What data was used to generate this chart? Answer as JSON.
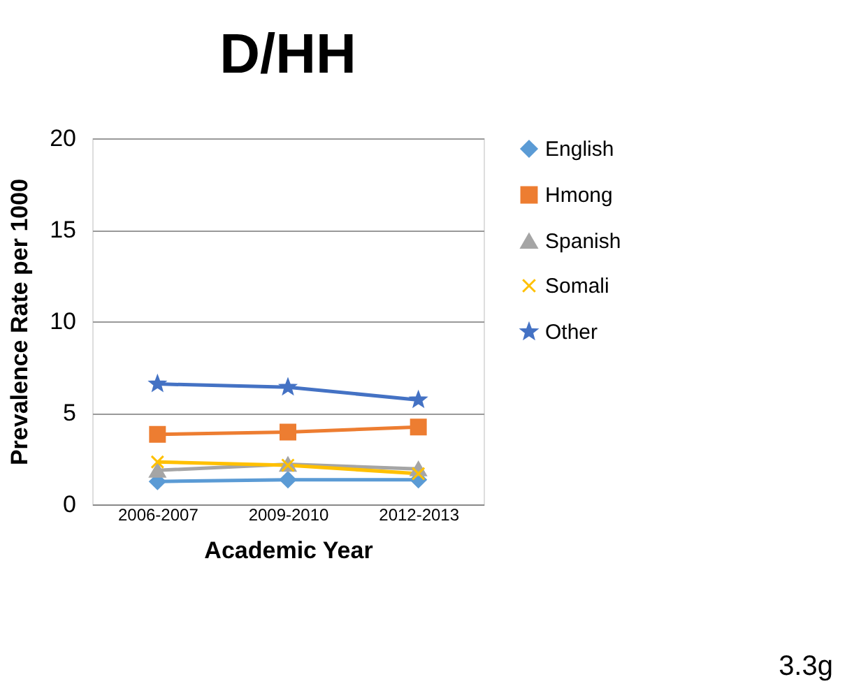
{
  "chart_data": {
    "type": "line",
    "title": "D/HH",
    "xlabel": "Academic Year",
    "ylabel": "Prevalence Rate per 1000",
    "categories": [
      "2006-2007",
      "2009-2010",
      "2012-2013"
    ],
    "series": [
      {
        "name": "English",
        "color": "#5b9bd5",
        "marker": "diamond",
        "values": [
          1.25,
          1.35,
          1.35
        ]
      },
      {
        "name": "Hmong",
        "color": "#ed7d31",
        "marker": "square",
        "values": [
          3.83,
          3.95,
          4.23
        ]
      },
      {
        "name": "Spanish",
        "color": "#a5a5a5",
        "marker": "triangle",
        "values": [
          1.86,
          2.19,
          1.94
        ]
      },
      {
        "name": "Somali",
        "color": "#ffc000",
        "marker": "cross",
        "values": [
          2.32,
          2.14,
          1.68
        ]
      },
      {
        "name": "Other",
        "color": "#4472c4",
        "marker": "star",
        "values": [
          6.58,
          6.4,
          5.71
        ]
      }
    ],
    "ylim": [
      0,
      20
    ],
    "yticks": [
      0,
      5,
      10,
      15,
      20
    ],
    "grid": "y",
    "legend": "right",
    "line_style": "solid",
    "annotations": [
      "3.3g"
    ]
  }
}
